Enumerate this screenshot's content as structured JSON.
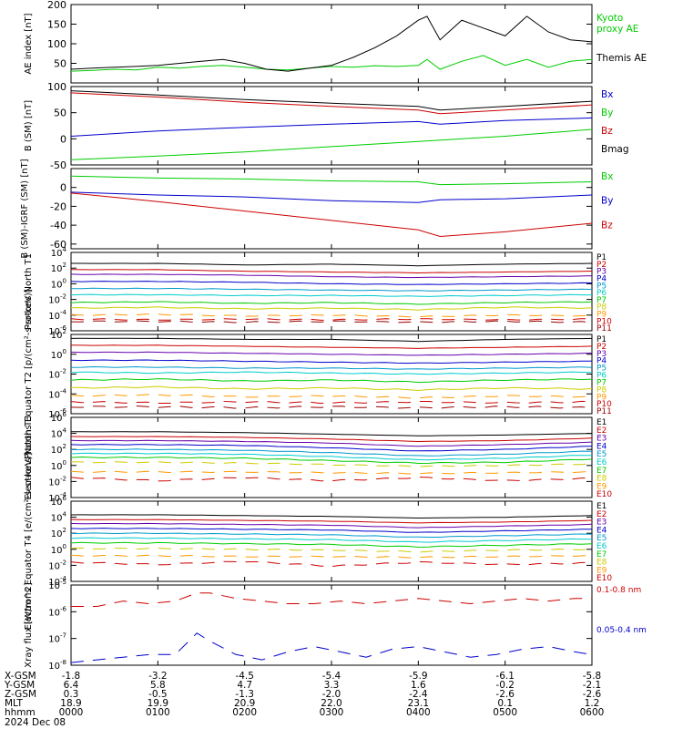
{
  "figure": {
    "date_label": "2024 Dec 08"
  },
  "x_axis": {
    "row_labels": [
      "X-GSM",
      "Y-GSM",
      "Z-GSM",
      "MLT",
      "hhmm"
    ],
    "columns": [
      {
        "hhmm": "0000",
        "X-GSM": "-1.8",
        "Y-GSM": "6.4",
        "Z-GSM": "0.3",
        "MLT": "18.9"
      },
      {
        "hhmm": "0100",
        "X-GSM": "-3.2",
        "Y-GSM": "5.8",
        "Z-GSM": "-0.5",
        "MLT": "19.9"
      },
      {
        "hhmm": "0200",
        "X-GSM": "-4.5",
        "Y-GSM": "4.7",
        "Z-GSM": "-1.3",
        "MLT": "20.9"
      },
      {
        "hhmm": "0300",
        "X-GSM": "-5.4",
        "Y-GSM": "3.3",
        "Z-GSM": "-2.0",
        "MLT": "22.0"
      },
      {
        "hhmm": "0400",
        "X-GSM": "-5.9",
        "Y-GSM": "1.6",
        "Z-GSM": "-2.4",
        "MLT": "23.1"
      },
      {
        "hhmm": "0500",
        "X-GSM": "-6.1",
        "Y-GSM": "-0.2",
        "Z-GSM": "-2.6",
        "MLT": "0.1"
      },
      {
        "hhmm": "0600",
        "X-GSM": "-5.8",
        "Y-GSM": "-2.1",
        "Z-GSM": "-2.6",
        "MLT": "1.2"
      }
    ]
  },
  "chart_data": [
    {
      "type": "line",
      "ylabel": "AE index [nT]",
      "ylim": [
        0,
        200
      ],
      "yticks": [
        "50",
        "100",
        "150",
        "200"
      ],
      "log": false,
      "legend": "right",
      "series": [
        {
          "name": "Kyoto proxy AE",
          "color": "#00cc00",
          "x": [
            0,
            0.25,
            0.5,
            0.75,
            1,
            1.25,
            1.5,
            1.75,
            2,
            2.25,
            2.5,
            2.75,
            3,
            3.25,
            3.5,
            3.75,
            4,
            4.1,
            4.25,
            4.5,
            4.75,
            5,
            5.25,
            5.5,
            5.75,
            6
          ],
          "values": [
            30,
            32,
            35,
            33,
            40,
            38,
            42,
            45,
            40,
            35,
            33,
            38,
            42,
            40,
            44,
            42,
            45,
            60,
            35,
            55,
            70,
            45,
            60,
            40,
            55,
            60
          ]
        },
        {
          "name": "Themis AE",
          "color": "#000000",
          "x": [
            0,
            0.25,
            0.5,
            0.75,
            1,
            1.25,
            1.5,
            1.75,
            2,
            2.25,
            2.5,
            2.75,
            3,
            3.25,
            3.5,
            3.75,
            4,
            4.1,
            4.25,
            4.5,
            4.75,
            5,
            5.25,
            5.5,
            5.75,
            6
          ],
          "values": [
            35,
            38,
            40,
            42,
            45,
            50,
            55,
            60,
            50,
            35,
            30,
            38,
            45,
            65,
            90,
            120,
            160,
            170,
            110,
            160,
            140,
            120,
            170,
            130,
            110,
            105
          ]
        }
      ]
    },
    {
      "type": "line",
      "ylabel": "B (SM) [nT]",
      "ylim": [
        -50,
        100
      ],
      "yticks": [
        "-50",
        "0",
        "50",
        "100"
      ],
      "log": false,
      "legend": "right",
      "series": [
        {
          "name": "Bx",
          "color": "#0000cc",
          "x": [
            0,
            1,
            2,
            3,
            4,
            4.25,
            5,
            6
          ],
          "values": [
            5,
            15,
            22,
            28,
            33,
            28,
            35,
            40
          ]
        },
        {
          "name": "By",
          "color": "#00cc00",
          "x": [
            0,
            1,
            2,
            3,
            4,
            5,
            6
          ],
          "values": [
            -40,
            -33,
            -25,
            -15,
            -5,
            5,
            18
          ]
        },
        {
          "name": "Bz",
          "color": "#cc0000",
          "x": [
            0,
            1,
            2,
            3,
            4,
            4.25,
            5,
            6
          ],
          "values": [
            88,
            80,
            70,
            62,
            55,
            48,
            55,
            65
          ]
        },
        {
          "name": "Bmag",
          "color": "#000000",
          "x": [
            0,
            1,
            2,
            3,
            4,
            4.25,
            5,
            6
          ],
          "values": [
            92,
            84,
            75,
            68,
            62,
            55,
            62,
            72
          ]
        }
      ]
    },
    {
      "type": "line",
      "ylabel": "B (SM)-IGRF (SM) [nT]",
      "ylim": [
        -65,
        20
      ],
      "yticks": [
        "-60",
        "-40",
        "-20",
        "0"
      ],
      "log": false,
      "legend": "right",
      "series": [
        {
          "name": "Bx",
          "color": "#00cc00",
          "x": [
            0,
            1,
            2,
            3,
            4,
            4.25,
            5,
            6
          ],
          "values": [
            12,
            10,
            9,
            7,
            6,
            3,
            4,
            6
          ]
        },
        {
          "name": "By",
          "color": "#0000cc",
          "x": [
            0,
            1,
            2,
            3,
            4,
            4.25,
            5,
            6
          ],
          "values": [
            -5,
            -8,
            -10,
            -14,
            -16,
            -13,
            -12,
            -8
          ]
        },
        {
          "name": "Bz",
          "color": "#cc0000",
          "x": [
            0,
            1,
            2,
            3,
            4,
            4.25,
            5,
            6
          ],
          "values": [
            -6,
            -15,
            -25,
            -35,
            -45,
            -52,
            -47,
            -38
          ]
        }
      ]
    },
    {
      "type": "line",
      "ylabel": "Protons North T1",
      "ylim": [
        -6,
        4
      ],
      "yticks": [
        "10-6",
        "10-4",
        "10-2",
        "100",
        "102",
        "104"
      ],
      "log": true,
      "legend": "right",
      "series": [
        {
          "name": "P1",
          "color": "#000000",
          "values": [
            2.6,
            2.6,
            2.4,
            2.5,
            2.3,
            2.5,
            2.6
          ]
        },
        {
          "name": "P2",
          "color": "#cc0000",
          "values": [
            1.8,
            1.8,
            1.6,
            1.5,
            1.4,
            1.5,
            1.6
          ]
        },
        {
          "name": "P3",
          "color": "#6600aa",
          "values": [
            1.2,
            1.2,
            1.1,
            0.9,
            0.8,
            0.9,
            1.0
          ]
        },
        {
          "name": "P4",
          "color": "#0000cc",
          "values": [
            0.3,
            0.3,
            0.2,
            0.0,
            -0.1,
            0.0,
            0.1
          ]
        },
        {
          "name": "P5",
          "color": "#0099cc",
          "values": [
            -0.6,
            -0.6,
            -0.7,
            -0.8,
            -0.9,
            -0.8,
            -0.7
          ]
        },
        {
          "name": "P6",
          "color": "#00cccc",
          "values": [
            -1.4,
            -1.4,
            -1.5,
            -1.5,
            -1.6,
            -1.5,
            -1.4
          ]
        },
        {
          "name": "P7",
          "color": "#00cc00",
          "values": [
            -2.4,
            -2.3,
            -2.5,
            -2.4,
            -2.6,
            -2.4,
            -2.3
          ]
        },
        {
          "name": "P8",
          "color": "#cccc00",
          "values": [
            -3.1,
            -3.0,
            -3.2,
            -3.1,
            -3.3,
            -3.0,
            -3.1
          ]
        },
        {
          "name": "P9",
          "color": "#ff9900",
          "values": [
            -4.0,
            -3.9,
            -4.1,
            -4.0,
            -4.2,
            -4.0,
            -4.1
          ]
        },
        {
          "name": "P10",
          "color": "#cc0000",
          "values": [
            -4.5,
            -4.6,
            -4.5,
            -4.6,
            -4.5,
            -4.6,
            -4.5
          ]
        },
        {
          "name": "P11",
          "color": "#990000",
          "values": [
            -4.8,
            -4.8,
            -4.9,
            -4.8,
            -4.9,
            -4.8,
            -4.9
          ]
        }
      ]
    },
    {
      "type": "line",
      "ylabel": "Protons Equator T2 [p/(cm²-s-sr-keV)]",
      "ylim": [
        -6,
        2
      ],
      "yticks": [
        "10-6",
        "10-4",
        "10-2",
        "100",
        "102"
      ],
      "log": true,
      "legend": "right",
      "series": [
        {
          "name": "P1",
          "color": "#000000",
          "values": [
            1.6,
            1.6,
            1.5,
            1.5,
            1.3,
            1.5,
            1.6
          ]
        },
        {
          "name": "P2",
          "color": "#cc0000",
          "values": [
            0.9,
            0.9,
            0.8,
            0.7,
            0.6,
            0.7,
            0.8
          ]
        },
        {
          "name": "P3",
          "color": "#6600aa",
          "values": [
            0.2,
            0.2,
            0.1,
            0.0,
            -0.1,
            0.0,
            0.1
          ]
        },
        {
          "name": "P4",
          "color": "#0000cc",
          "values": [
            -0.6,
            -0.6,
            -0.7,
            -0.8,
            -0.9,
            -0.8,
            -0.7
          ]
        },
        {
          "name": "P5",
          "color": "#0099cc",
          "values": [
            -1.3,
            -1.3,
            -1.4,
            -1.4,
            -1.5,
            -1.4,
            -1.3
          ]
        },
        {
          "name": "P6",
          "color": "#00cccc",
          "values": [
            -1.8,
            -1.9,
            -1.8,
            -1.9,
            -2.0,
            -1.9,
            -1.8
          ]
        },
        {
          "name": "P7",
          "color": "#00cc00",
          "values": [
            -2.6,
            -2.5,
            -2.7,
            -2.6,
            -2.8,
            -2.6,
            -2.5
          ]
        },
        {
          "name": "P8",
          "color": "#cccc00",
          "values": [
            -3.4,
            -3.3,
            -3.5,
            -3.4,
            -3.6,
            -3.4,
            -3.5
          ]
        },
        {
          "name": "P9",
          "color": "#ff9900",
          "values": [
            -4.2,
            -4.1,
            -4.3,
            -4.2,
            -4.4,
            -4.2,
            -4.3
          ]
        },
        {
          "name": "P10",
          "color": "#cc0000",
          "values": [
            -4.8,
            -4.9,
            -4.8,
            -4.9,
            -4.8,
            -4.9,
            -4.8
          ]
        },
        {
          "name": "P11",
          "color": "#990000",
          "values": [
            -5.3,
            -5.3,
            -5.4,
            -5.3,
            -5.4,
            -5.3,
            -5.4
          ]
        }
      ]
    },
    {
      "type": "line",
      "ylabel": "Electrons North T3",
      "ylim": [
        -4,
        6
      ],
      "yticks": [
        "10-4",
        "10-2",
        "100",
        "102",
        "104",
        "106"
      ],
      "log": true,
      "legend": "right",
      "series": [
        {
          "name": "E1",
          "color": "#000000",
          "values": [
            4.2,
            4.2,
            4.1,
            3.9,
            3.7,
            3.8,
            4.0
          ]
        },
        {
          "name": "E2",
          "color": "#cc0000",
          "values": [
            3.6,
            3.6,
            3.5,
            3.3,
            3.0,
            3.1,
            3.4
          ]
        },
        {
          "name": "E3",
          "color": "#6600aa",
          "values": [
            3.1,
            3.1,
            3.0,
            2.8,
            2.4,
            2.6,
            2.9
          ]
        },
        {
          "name": "E4",
          "color": "#0000cc",
          "values": [
            2.6,
            2.6,
            2.5,
            2.2,
            1.8,
            2.0,
            2.4
          ]
        },
        {
          "name": "E5",
          "color": "#0099cc",
          "values": [
            2.0,
            2.0,
            1.9,
            1.6,
            1.2,
            1.4,
            1.8
          ]
        },
        {
          "name": "E6",
          "color": "#00cccc",
          "values": [
            1.5,
            1.5,
            1.4,
            1.1,
            0.7,
            0.9,
            1.3
          ]
        },
        {
          "name": "E7",
          "color": "#00cc00",
          "values": [
            1.0,
            1.0,
            0.9,
            0.6,
            0.3,
            0.4,
            0.8
          ]
        },
        {
          "name": "E8",
          "color": "#cccc00",
          "values": [
            0.4,
            0.4,
            0.3,
            0.1,
            -0.1,
            0.0,
            0.2
          ]
        },
        {
          "name": "E9",
          "color": "#ff9900",
          "values": [
            -0.8,
            -0.8,
            -0.8,
            -0.9,
            -1.0,
            -0.9,
            -0.8
          ]
        },
        {
          "name": "E10",
          "color": "#cc0000",
          "values": [
            -1.5,
            -1.9,
            -1.5,
            -1.9,
            -1.5,
            -1.9,
            -1.6
          ]
        }
      ]
    },
    {
      "type": "line",
      "ylabel": "Electrons Equator T4 [e/(cm²-s-sr-keV)]",
      "ylim": [
        -4,
        6
      ],
      "yticks": [
        "10-4",
        "10-2",
        "100",
        "102",
        "104",
        "106"
      ],
      "log": true,
      "legend": "right",
      "series": [
        {
          "name": "E1",
          "color": "#000000",
          "values": [
            4.3,
            4.3,
            4.2,
            4.1,
            3.9,
            4.0,
            4.2
          ]
        },
        {
          "name": "E2",
          "color": "#cc0000",
          "values": [
            3.7,
            3.7,
            3.6,
            3.5,
            3.3,
            3.4,
            3.6
          ]
        },
        {
          "name": "E3",
          "color": "#6600aa",
          "values": [
            3.2,
            3.2,
            3.1,
            3.0,
            2.7,
            2.9,
            3.1
          ]
        },
        {
          "name": "E4",
          "color": "#0000cc",
          "values": [
            2.6,
            2.6,
            2.5,
            2.4,
            2.1,
            2.3,
            2.5
          ]
        },
        {
          "name": "E5",
          "color": "#0099cc",
          "values": [
            2.0,
            2.0,
            1.9,
            1.8,
            1.5,
            1.7,
            1.9
          ]
        },
        {
          "name": "E6",
          "color": "#00cccc",
          "values": [
            1.4,
            1.4,
            1.3,
            1.2,
            0.9,
            1.1,
            1.3
          ]
        },
        {
          "name": "E7",
          "color": "#00cc00",
          "values": [
            0.8,
            0.8,
            0.7,
            0.6,
            0.3,
            0.5,
            0.7
          ]
        },
        {
          "name": "E8",
          "color": "#cccc00",
          "values": [
            0.1,
            0.1,
            0.0,
            -0.1,
            -0.3,
            -0.1,
            0.0
          ]
        },
        {
          "name": "E9",
          "color": "#ff9900",
          "values": [
            -0.8,
            -0.8,
            -0.9,
            -0.9,
            -1.0,
            -0.9,
            -0.8
          ]
        },
        {
          "name": "E10",
          "color": "#cc0000",
          "values": [
            -1.6,
            -1.9,
            -1.5,
            -2.1,
            -1.6,
            -1.9,
            -1.7
          ]
        }
      ]
    },
    {
      "type": "line",
      "ylabel": "Xray flux [W/m^2]",
      "ylim": [
        -8,
        -5
      ],
      "yticks": [
        "10-8",
        "10-7",
        "10-6",
        "10-5"
      ],
      "log": true,
      "legend": "right",
      "series": [
        {
          "name": "0.1-0.8 nm",
          "color": "#cc0000",
          "x": [
            0,
            0.3,
            0.6,
            0.9,
            1.2,
            1.45,
            1.6,
            1.9,
            2.2,
            2.5,
            2.8,
            3.1,
            3.4,
            3.7,
            4.0,
            4.3,
            4.6,
            4.9,
            5.2,
            5.5,
            5.8,
            6
          ],
          "values": [
            -5.8,
            -5.8,
            -5.6,
            -5.7,
            -5.6,
            -5.3,
            -5.3,
            -5.5,
            -5.6,
            -5.7,
            -5.7,
            -5.6,
            -5.7,
            -5.6,
            -5.5,
            -5.6,
            -5.7,
            -5.6,
            -5.5,
            -5.6,
            -5.5,
            -5.5
          ]
        },
        {
          "name": "0.05-0.4 nm",
          "color": "#0000cc",
          "x": [
            0,
            0.3,
            0.6,
            0.9,
            1.2,
            1.45,
            1.6,
            1.9,
            2.2,
            2.5,
            2.8,
            3.1,
            3.4,
            3.7,
            4.0,
            4.3,
            4.6,
            4.9,
            5.2,
            5.5,
            5.8,
            6
          ],
          "values": [
            -7.9,
            -7.8,
            -7.7,
            -7.6,
            -7.6,
            -6.8,
            -7.1,
            -7.6,
            -7.8,
            -7.5,
            -7.3,
            -7.5,
            -7.7,
            -7.4,
            -7.3,
            -7.5,
            -7.7,
            -7.6,
            -7.4,
            -7.3,
            -7.5,
            -7.6
          ]
        }
      ]
    }
  ]
}
